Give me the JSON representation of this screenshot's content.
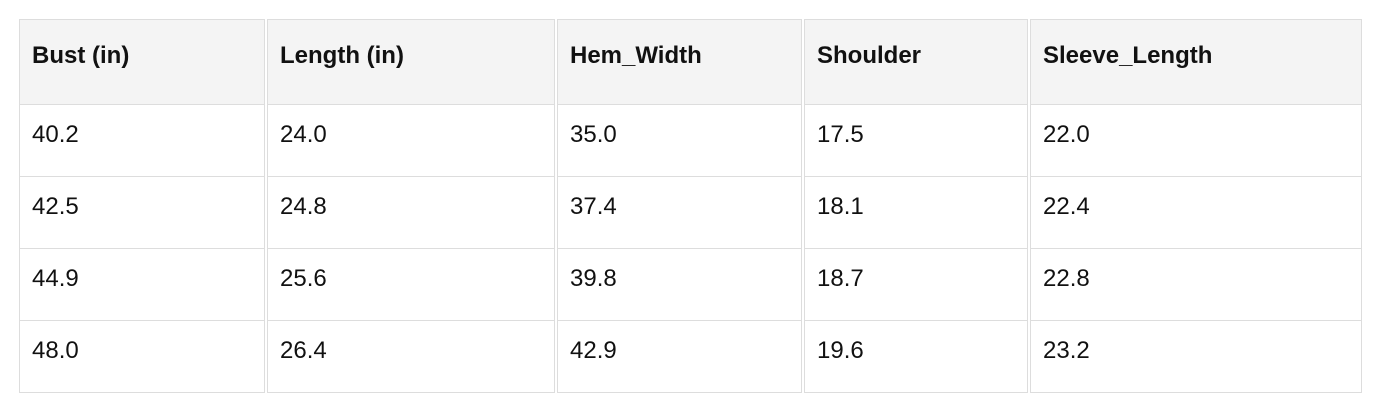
{
  "table": {
    "columns": [
      "Bust (in)",
      "Length (in)",
      "Hem_Width",
      "Shoulder",
      "Sleeve_Length"
    ],
    "rows": [
      [
        "40.2",
        "24.0",
        "35.0",
        "17.5",
        "22.0"
      ],
      [
        "42.5",
        "24.8",
        "37.4",
        "18.1",
        "22.4"
      ],
      [
        "44.9",
        "25.6",
        "39.8",
        "18.7",
        "22.8"
      ],
      [
        "48.0",
        "26.4",
        "42.9",
        "19.6",
        "23.2"
      ]
    ]
  }
}
